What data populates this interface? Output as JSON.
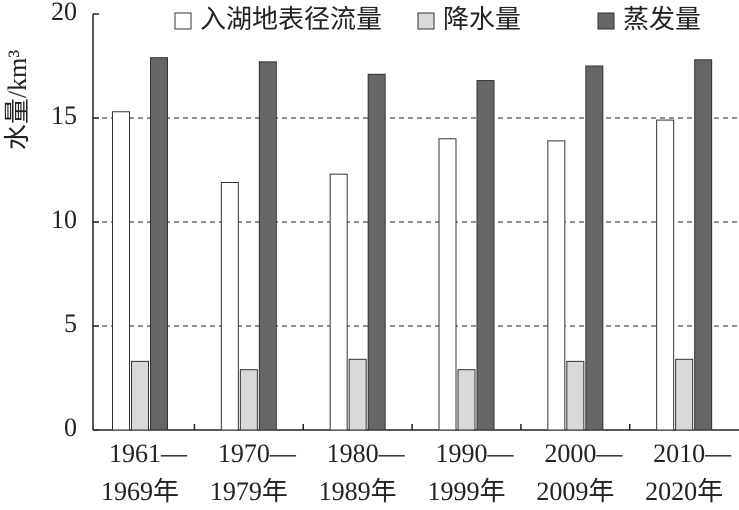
{
  "chart_data": {
    "type": "bar",
    "y_label": "水量/km³",
    "categories": [
      [
        "1961—",
        "1969年"
      ],
      [
        "1970—",
        "1979年"
      ],
      [
        "1980—",
        "1989年"
      ],
      [
        "1990—",
        "1999年"
      ],
      [
        "2000—",
        "2009年"
      ],
      [
        "2010—",
        "2020年"
      ]
    ],
    "series": [
      {
        "name": "入湖地表径流量",
        "color": "#ffffff",
        "values": [
          15.3,
          11.9,
          12.3,
          14.0,
          13.9,
          14.9
        ]
      },
      {
        "name": "降水量",
        "color": "#d9d9d9",
        "values": [
          3.3,
          2.9,
          3.4,
          2.9,
          3.3,
          3.4
        ]
      },
      {
        "name": "蒸发量",
        "color": "#666666",
        "values": [
          17.9,
          17.7,
          17.1,
          16.8,
          17.5,
          17.8
        ]
      }
    ],
    "ylim": [
      0,
      20
    ],
    "yticks": [
      0,
      5,
      10,
      15,
      20
    ],
    "grid": true
  }
}
